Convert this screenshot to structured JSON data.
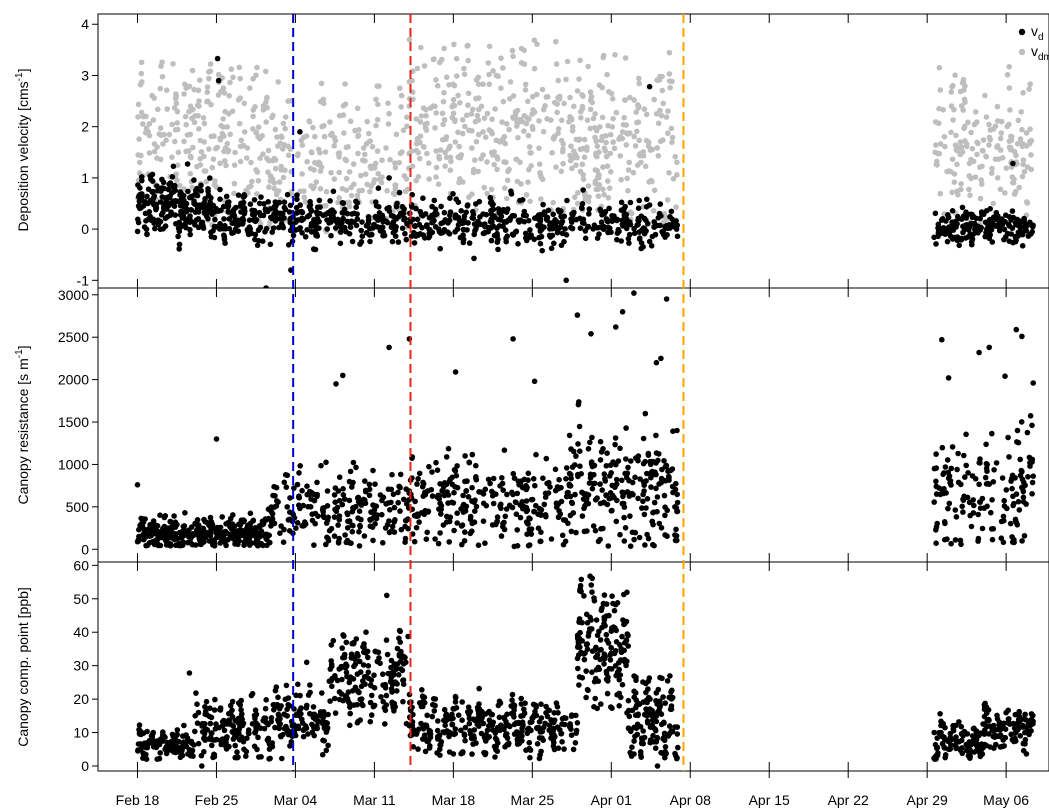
{
  "chart_data": [
    {
      "type": "scatter",
      "ylabel": "Deposition velocity [cms",
      "ylabel_sup": "-1",
      "ylabel_end": "]",
      "ylim": [
        -1.15,
        4.2
      ],
      "yticks": [
        -1,
        0,
        1,
        2,
        3,
        4
      ],
      "legend": {
        "placement": "top-right",
        "entries": [
          {
            "base": "v",
            "sub": "d",
            "color": "#000000"
          },
          {
            "base": "v",
            "sub": "dmax",
            "color": "#bebebe"
          }
        ]
      },
      "series": [
        {
          "color": "#bebebe",
          "clusters": [
            {
              "x": [
                18.0,
                29.6
              ],
              "mean": 1.8,
              "spread": 0.75,
              "amp": 0.5,
              "n": 240,
              "pmin": 0.0,
              "pmax": 3.3
            },
            {
              "x": [
                29.6,
                42.0
              ],
              "mean": 1.2,
              "spread": 0.7,
              "amp": 0.45,
              "n": 230,
              "pmin": -0.1,
              "pmax": 2.9
            },
            {
              "x": [
                42.0,
                56.3
              ],
              "mean": 2.0,
              "spread": 0.7,
              "amp": 0.6,
              "n": 300,
              "pmin": 0.1,
              "pmax": 3.7
            },
            {
              "x": [
                56.3,
                65.9
              ],
              "mean": 1.7,
              "spread": 0.7,
              "amp": 0.6,
              "n": 220,
              "pmin": 0.0,
              "pmax": 3.5
            },
            {
              "x": [
                88.6,
                97.4
              ],
              "mean": 1.5,
              "spread": 0.65,
              "amp": 0.5,
              "n": 180,
              "pmin": 0.0,
              "pmax": 3.2
            }
          ]
        },
        {
          "color": "#000000",
          "clusters": [
            {
              "x": [
                18.0,
                24.5
              ],
              "mean": 0.45,
              "spread": 0.28,
              "amp": 0.15,
              "n": 200,
              "pmin": -0.4,
              "pmax": 1.3
            },
            {
              "x": [
                24.5,
                33.0
              ],
              "mean": 0.22,
              "spread": 0.22,
              "amp": 0.12,
              "n": 170,
              "pmin": -1.1,
              "pmax": 1.0
            },
            {
              "x": [
                33.0,
                49.0
              ],
              "mean": 0.15,
              "spread": 0.22,
              "amp": 0.12,
              "n": 280,
              "pmin": -0.9,
              "pmax": 0.9
            },
            {
              "x": [
                49.0,
                65.9
              ],
              "mean": 0.12,
              "spread": 0.2,
              "amp": 0.1,
              "n": 280,
              "pmin": -1.1,
              "pmax": 0.8
            },
            {
              "x": [
                88.6,
                97.4
              ],
              "mean": 0.05,
              "spread": 0.16,
              "amp": 0.08,
              "n": 180,
              "pmin": -0.8,
              "pmax": 0.5
            }
          ],
          "outliers": [
            [
              25.1,
              3.33
            ],
            [
              25.2,
              2.9
            ],
            [
              32.4,
              1.9
            ],
            [
              40.3,
              1.0
            ],
            [
              63.4,
              2.78
            ],
            [
              95.6,
              1.28
            ],
            [
              29.4,
              -1.15
            ],
            [
              31.6,
              -0.8
            ],
            [
              56.0,
              -1.0
            ]
          ]
        }
      ]
    },
    {
      "type": "scatter",
      "ylabel": "Canopy resistance [s m",
      "ylabel_sup": "-1",
      "ylabel_end": "]",
      "ylim": [
        -150,
        3080
      ],
      "yticks": [
        0,
        500,
        1000,
        1500,
        2000,
        2500,
        3000
      ],
      "series": [
        {
          "color": "#000000",
          "clusters": [
            {
              "x": [
                18.0,
                29.6
              ],
              "mean": 190,
              "spread": 90,
              "amp": 40,
              "n": 330,
              "pmin": 40,
              "pmax": 700
            },
            {
              "x": [
                29.6,
                42.0
              ],
              "mean": 480,
              "spread": 210,
              "amp": 90,
              "n": 230,
              "pmin": 40,
              "pmax": 1300
            },
            {
              "x": [
                42.0,
                56.3
              ],
              "mean": 570,
              "spread": 260,
              "amp": 120,
              "n": 270,
              "pmin": 30,
              "pmax": 1800
            },
            {
              "x": [
                56.3,
                65.9
              ],
              "mean": 720,
              "spread": 340,
              "amp": 150,
              "n": 230,
              "pmin": 30,
              "pmax": 2300
            },
            {
              "x": [
                88.6,
                97.4
              ],
              "mean": 700,
              "spread": 330,
              "amp": 150,
              "n": 160,
              "pmin": 40,
              "pmax": 2100
            }
          ],
          "outliers": [
            [
              18.0,
              760
            ],
            [
              25.0,
              1300
            ],
            [
              35.6,
              1950
            ],
            [
              36.2,
              2050
            ],
            [
              40.3,
              2380
            ],
            [
              42.1,
              2480
            ],
            [
              46.2,
              2090
            ],
            [
              51.3,
              2480
            ],
            [
              53.2,
              1980
            ],
            [
              57.0,
              2760
            ],
            [
              58.2,
              2540
            ],
            [
              61.0,
              2800
            ],
            [
              62.0,
              3020
            ],
            [
              64.0,
              2200
            ],
            [
              64.4,
              2250
            ],
            [
              64.9,
              2950
            ],
            [
              60.4,
              2620
            ],
            [
              89.3,
              2470
            ],
            [
              93.5,
              2380
            ],
            [
              92.6,
              2320
            ],
            [
              95.9,
              2590
            ],
            [
              96.4,
              2510
            ],
            [
              94.9,
              2040
            ],
            [
              97.4,
              1960
            ],
            [
              89.9,
              2020
            ]
          ]
        }
      ]
    },
    {
      "type": "scatter",
      "ylabel": "Canopy comp. point [ppb]",
      "ylim": [
        -1.5,
        61
      ],
      "yticks": [
        0,
        10,
        20,
        30,
        40,
        50,
        60
      ],
      "series": [
        {
          "color": "#000000",
          "clusters": [
            {
              "x": [
                18.0,
                23.0
              ],
              "mean": 6.5,
              "spread": 2.0,
              "amp": 1.5,
              "n": 120,
              "pmin": 2.0,
              "pmax": 18
            },
            {
              "x": [
                23.0,
                30.0
              ],
              "mean": 11.5,
              "spread": 4.0,
              "amp": 4.0,
              "n": 160,
              "pmin": 2.0,
              "pmax": 29
            },
            {
              "x": [
                30.0,
                35.0
              ],
              "mean": 14.0,
              "spread": 4.0,
              "amp": 2.5,
              "n": 120,
              "pmin": 2.0,
              "pmax": 27
            },
            {
              "x": [
                35.0,
                42.0
              ],
              "mean": 27.0,
              "spread": 6.0,
              "amp": 5.0,
              "n": 180,
              "pmin": 12,
              "pmax": 51
            },
            {
              "x": [
                42.0,
                49.0
              ],
              "mean": 12.0,
              "spread": 4.0,
              "amp": 4.0,
              "n": 170,
              "pmin": 3.0,
              "pmax": 27
            },
            {
              "x": [
                49.0,
                57.0
              ],
              "mean": 12.0,
              "spread": 4.0,
              "amp": 3.0,
              "n": 170,
              "pmin": 2.0,
              "pmax": 26
            },
            {
              "x": [
                57.0,
                61.5
              ],
              "mean": 36.0,
              "spread": 9.0,
              "amp": 6.0,
              "n": 160,
              "pmin": 15,
              "pmax": 58
            },
            {
              "x": [
                61.5,
                65.9
              ],
              "mean": 14.0,
              "spread": 6.0,
              "amp": 5.0,
              "n": 140,
              "pmin": 2.0,
              "pmax": 27
            },
            {
              "x": [
                88.6,
                93.0
              ],
              "mean": 7.0,
              "spread": 2.5,
              "amp": 2.0,
              "n": 110,
              "pmin": 2.0,
              "pmax": 18
            },
            {
              "x": [
                93.0,
                97.4
              ],
              "mean": 11.5,
              "spread": 3.0,
              "amp": 2.0,
              "n": 110,
              "pmin": 3.0,
              "pmax": 20
            }
          ],
          "outliers": [
            [
              22.6,
              27.8
            ],
            [
              23.7,
              0.0
            ],
            [
              33.0,
              31.0
            ],
            [
              40.1,
              51.0
            ],
            [
              64.1,
              0.0
            ],
            [
              37.4,
              38.0
            ]
          ]
        }
      ]
    }
  ],
  "x_axis": {
    "range": [
      14.5,
      98.8
    ],
    "tick_labels": [
      "Feb 18",
      "Feb 25",
      "Mar 04",
      "Mar 11",
      "Mar 18",
      "Mar 25",
      "Apr 01",
      "Apr 08",
      "Apr 15",
      "Apr 22",
      "Apr 29",
      "May 06"
    ],
    "tick_positions": [
      18,
      25,
      32,
      39,
      46,
      53,
      60,
      67,
      74,
      81,
      88,
      95
    ]
  },
  "vlines": [
    {
      "x": 31.8,
      "color": "#0000cd"
    },
    {
      "x": 42.2,
      "color": "#e8251a"
    },
    {
      "x": 66.4,
      "color": "#ffa500"
    }
  ]
}
